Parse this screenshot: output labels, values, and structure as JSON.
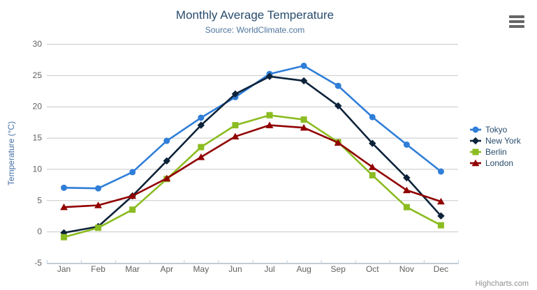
{
  "header": {
    "title": "Monthly Average Temperature",
    "subtitle": "Source: WorldClimate.com"
  },
  "credits": "Highcharts.com",
  "chart_data": {
    "type": "line",
    "title": "Monthly Average Temperature",
    "subtitle": "Source: WorldClimate.com",
    "categories": [
      "Jan",
      "Feb",
      "Mar",
      "Apr",
      "May",
      "Jun",
      "Jul",
      "Aug",
      "Sep",
      "Oct",
      "Nov",
      "Dec"
    ],
    "xlabel": "",
    "ylabel": "Temperature (°C)",
    "ylim": [
      -5,
      30
    ],
    "ytick_interval": 5,
    "grid": true,
    "legend_position": "right",
    "series": [
      {
        "name": "Tokyo",
        "color": "#2f7ed8",
        "marker": "circle",
        "values": [
          7.0,
          6.9,
          9.5,
          14.5,
          18.2,
          21.5,
          25.2,
          26.5,
          23.3,
          18.3,
          13.9,
          9.6
        ]
      },
      {
        "name": "New York",
        "color": "#0d233a",
        "marker": "diamond",
        "values": [
          -0.2,
          0.8,
          5.7,
          11.3,
          17.0,
          22.0,
          24.8,
          24.1,
          20.1,
          14.1,
          8.6,
          2.5
        ]
      },
      {
        "name": "Berlin",
        "color": "#8bbc21",
        "marker": "square",
        "values": [
          -0.9,
          0.6,
          3.5,
          8.4,
          13.5,
          17.0,
          18.6,
          17.9,
          14.3,
          9.0,
          3.9,
          1.0
        ]
      },
      {
        "name": "London",
        "color": "#910000",
        "marker": "triangle",
        "values": [
          3.9,
          4.2,
          5.7,
          8.5,
          11.9,
          15.2,
          17.0,
          16.6,
          14.2,
          10.3,
          6.6,
          4.8
        ]
      }
    ],
    "style": {
      "grid_color": "#c8c8c8",
      "axis_line_color": "#c0d0e0",
      "axis_label_color": "#606060",
      "yaxis_title_color": "#4572a7",
      "title_color": "#274b6d",
      "subtitle_color": "#4d759e",
      "legend_text_color": "#274b6d",
      "credits_color": "#8f8f8f",
      "menu_icon_color": "#666666"
    }
  }
}
